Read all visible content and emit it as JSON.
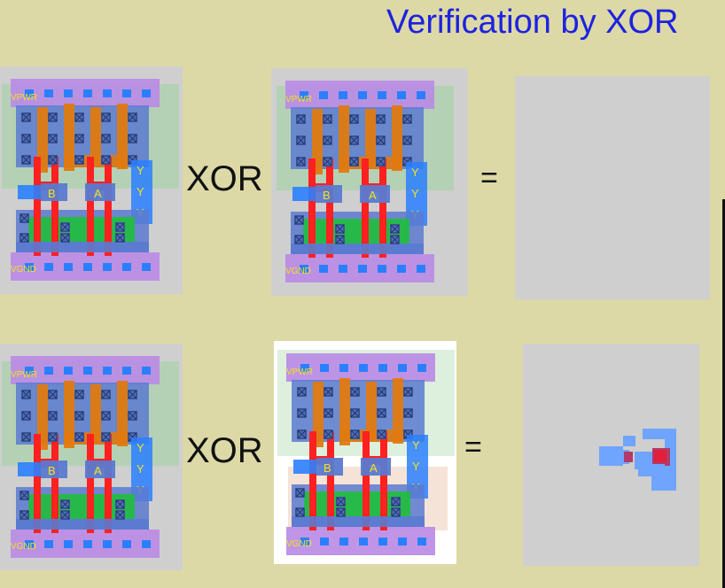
{
  "slide": {
    "title": "Verification by XOR",
    "operator_label": "XOR",
    "equals_label": "="
  },
  "rows": [
    {
      "left_cell": {
        "power_label": "VPWR",
        "ground_label": "VGND",
        "input_b": "B",
        "input_a": "A",
        "output_y": [
          "Y",
          "Y",
          "Y"
        ]
      },
      "right_cell": {
        "power_label": "VPWR",
        "ground_label": "VGND",
        "input_b": "B",
        "input_a": "A",
        "output_y": [
          "Y",
          "Y",
          "Y"
        ]
      },
      "result": "empty"
    },
    {
      "left_cell": {
        "power_label": "VPWR",
        "ground_label": "VGND",
        "input_b": "B",
        "input_a": "A",
        "output_y": [
          "Y",
          "Y",
          "Y"
        ]
      },
      "right_cell": {
        "power_label": "VPWR",
        "ground_label": "VGND",
        "input_b": "B",
        "input_a": "A",
        "output_y": [
          "Y",
          "Y",
          "Y"
        ]
      },
      "result": "difference"
    }
  ],
  "colors": {
    "background": "#dcd9a6",
    "title": "#1e22e0",
    "metal1": "#b98ae6",
    "poly": "#ff2020",
    "diffusion": "#e07a10",
    "nwell": "#9fd4a0",
    "ndiff": "#1fbf3a",
    "local_interconnect": "#5a7ad0",
    "contact": "#2a7fff",
    "label": "#f2e21c"
  }
}
